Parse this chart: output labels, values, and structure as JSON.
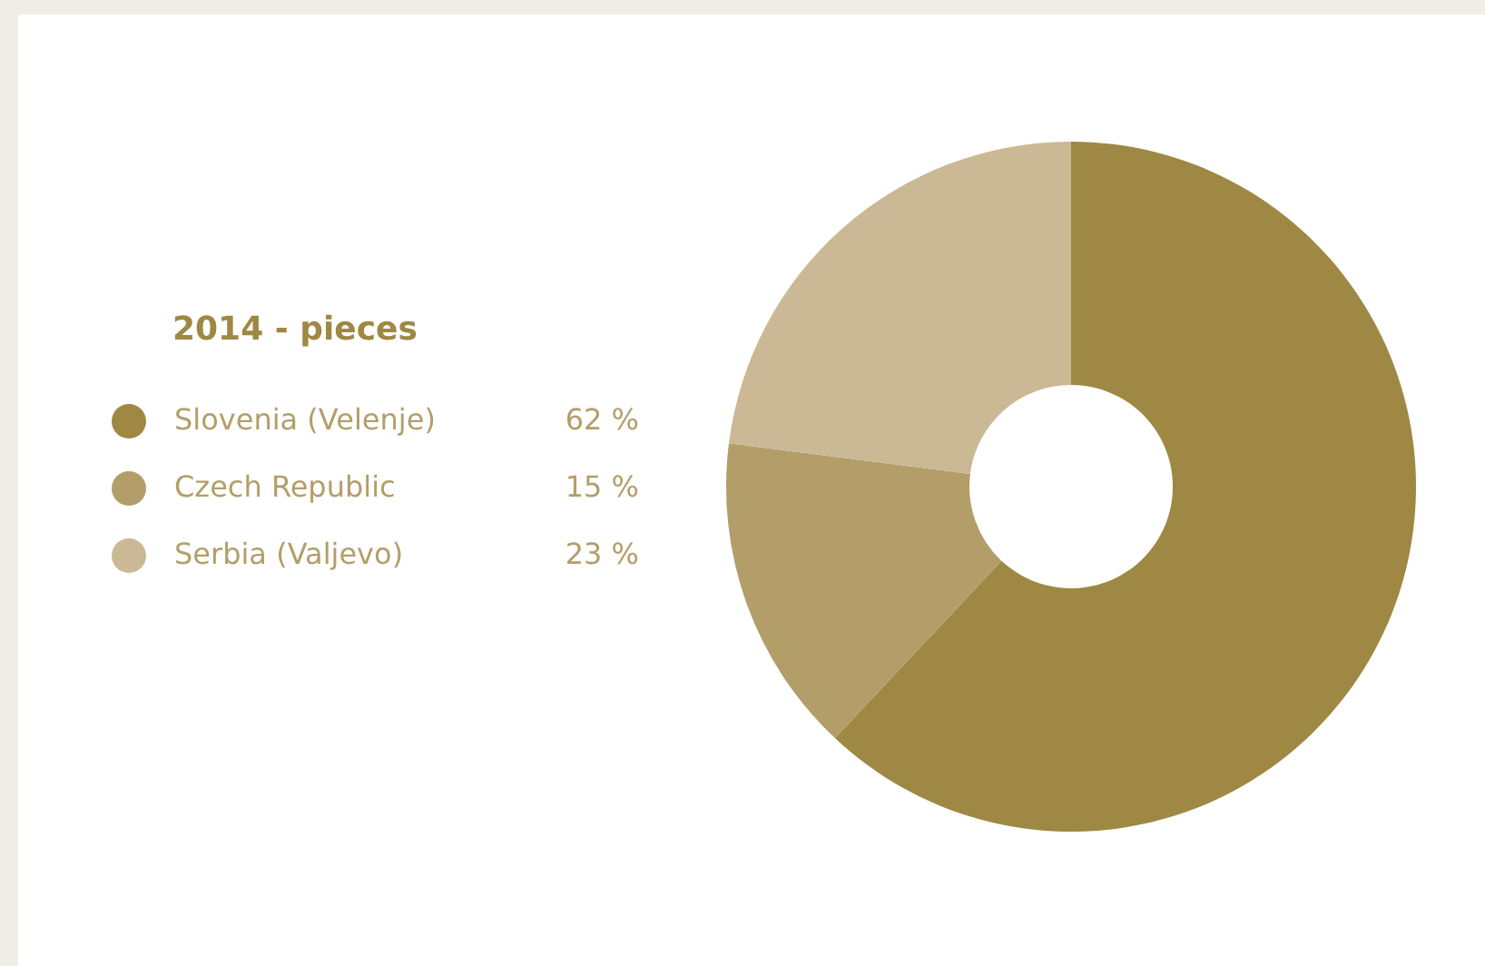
{
  "chart_data": {
    "type": "donut",
    "legend_title": "2014 - pieces",
    "categories": [
      "Slovenia (Velenje)",
      "Czech Republic",
      "Serbia (Valjevo)"
    ],
    "values": [
      62,
      15,
      23
    ],
    "colors": [
      "#9e8843",
      "#b39e6a",
      "#cab994"
    ],
    "value_labels": [
      "62 %",
      "15 %",
      "23 %"
    ],
    "legend": "left"
  }
}
